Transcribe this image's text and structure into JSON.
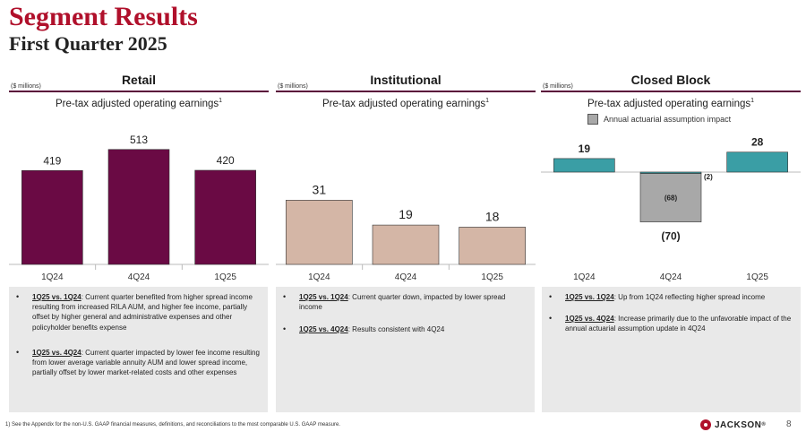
{
  "header": {
    "title": "Segment Results",
    "subtitle": "First Quarter 2025"
  },
  "colors": {
    "accent": "#b0102b",
    "retail_bar": "#6a0a44",
    "institutional_bar": "#d4b6a6",
    "closed_block_bar": "#3a9ea5",
    "actuarial_bar": "#a8a8a8"
  },
  "sections": {
    "retail": {
      "title": "Retail",
      "units": "($ millions)",
      "chart_title": "Pre-tax adjusted operating earnings",
      "footnote_mark": "1",
      "bullets": [
        {
          "lead": "1Q25 vs. 1Q24",
          "text": ": Current quarter benefited from higher spread income resulting from increased RILA AUM, and higher fee income, partially offset by higher general and administrative expenses and other policyholder benefits expense"
        },
        {
          "lead": "1Q25 vs. 4Q24",
          "text": ": Current quarter impacted by lower fee income resulting from lower average variable annuity AUM and lower spread income, partially offset by lower market-related costs and other expenses"
        }
      ]
    },
    "institutional": {
      "title": "Institutional",
      "units": "($ millions)",
      "chart_title": "Pre-tax adjusted operating earnings",
      "footnote_mark": "1",
      "bullets": [
        {
          "lead": "1Q25 vs. 1Q24",
          "text": ": Current quarter down, impacted by lower spread income"
        },
        {
          "lead": "1Q25 vs. 4Q24",
          "text": ": Results consistent with 4Q24"
        }
      ]
    },
    "closed_block": {
      "title": "Closed Block",
      "units": "($ millions)",
      "chart_title": "Pre-tax adjusted operating earnings",
      "footnote_mark": "1",
      "legend": "Annual actuarial assumption impact",
      "bullets": [
        {
          "lead": "1Q25 vs. 1Q24",
          "text": ": Up from 1Q24 reflecting higher spread income"
        },
        {
          "lead": "1Q25 vs. 4Q24",
          "text": ": Increase primarily due to the unfavorable impact of the annual actuarial assumption update in 4Q24"
        }
      ]
    }
  },
  "chart_data": [
    {
      "type": "bar",
      "title": "Retail — Pre-tax adjusted operating earnings",
      "categories": [
        "1Q24",
        "4Q24",
        "1Q25"
      ],
      "values": [
        419,
        513,
        420
      ],
      "labels": [
        "419",
        "513",
        "420"
      ],
      "ylim": [
        0,
        560
      ]
    },
    {
      "type": "bar",
      "title": "Institutional — Pre-tax adjusted operating earnings",
      "categories": [
        "1Q24",
        "4Q24",
        "1Q25"
      ],
      "values": [
        31,
        19,
        18
      ],
      "labels": [
        "31",
        "19",
        "18"
      ],
      "ylim": [
        0,
        45
      ]
    },
    {
      "type": "bar",
      "title": "Closed Block — Pre-tax adjusted operating earnings",
      "categories": [
        "1Q24",
        "4Q24",
        "1Q25"
      ],
      "series": [
        {
          "name": "Pre-tax adjusted operating earnings",
          "values": [
            19,
            -2,
            28
          ],
          "labels": [
            "19",
            "(2)",
            "28"
          ]
        },
        {
          "name": "Annual actuarial assumption impact",
          "values": [
            0,
            -68,
            0
          ],
          "labels": [
            "",
            "(68)",
            ""
          ]
        }
      ],
      "totals": [
        19,
        -70,
        28
      ],
      "total_labels": [
        "",
        "(70)",
        ""
      ],
      "ylim": [
        -80,
        40
      ]
    }
  ],
  "footer": {
    "footnote": "1) See the Appendix for the non-U.S. GAAP financial measures, definitions, and reconciliations to the most comparable U.S. GAAP measure.",
    "logo": "JACKSON",
    "page": "8"
  }
}
